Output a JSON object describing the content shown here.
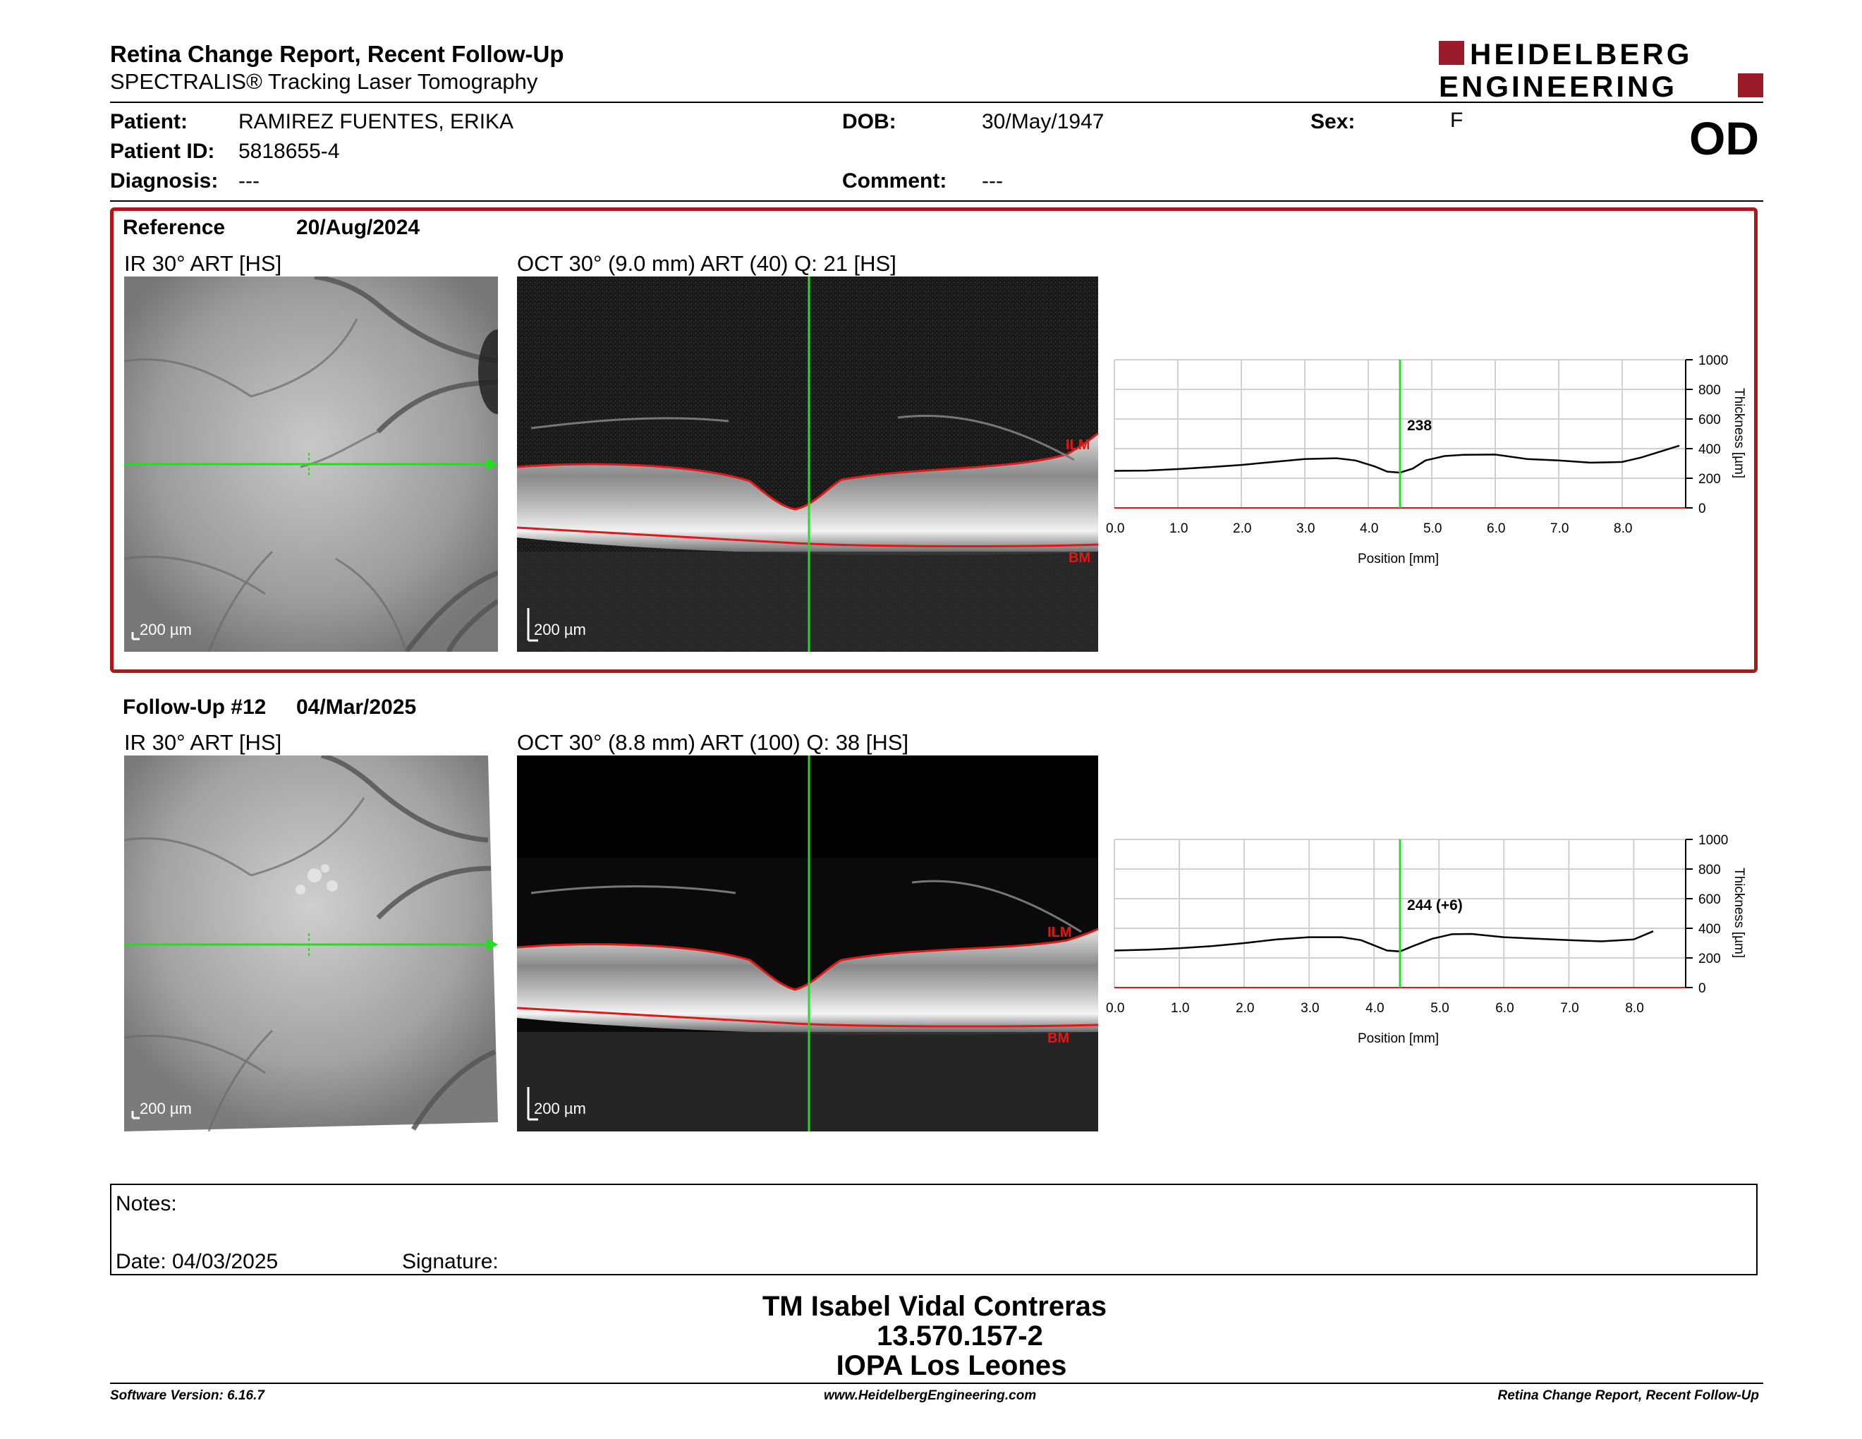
{
  "header": {
    "title": "Retina Change Report, Recent Follow-Up",
    "subtitle": "SPECTRALIS® Tracking Laser Tomography",
    "logo_line1": "HEIDELBERG",
    "logo_line2": "ENGINEERING",
    "brand_color": "#9b1b2a"
  },
  "patient": {
    "patient_label": "Patient:",
    "patient_value": "RAMIREZ FUENTES, ERIKA",
    "id_label": "Patient ID:",
    "id_value": "5818655-4",
    "diagnosis_label": "Diagnosis:",
    "diagnosis_value": "---",
    "dob_label": "DOB:",
    "dob_value": "30/May/1947",
    "comment_label": "Comment:",
    "comment_value": "---",
    "sex_label": "Sex:",
    "sex_value": "F",
    "eye": "OD"
  },
  "reference": {
    "label": "Reference",
    "date": "20/Aug/2024",
    "ir_label": "IR 30° ART [HS]",
    "oct_label": "OCT 30° (9.0 mm) ART (40) Q: 21 [HS]",
    "scale_label": "200 µm",
    "ilm_label": "ILM",
    "bm_label": "BM"
  },
  "followup": {
    "label": "Follow-Up #12",
    "date": "04/Mar/2025",
    "ir_label": "IR 30° ART [HS]",
    "oct_label": "OCT 30° (8.8 mm) ART (100) Q: 38 [HS]",
    "scale_label": "200 µm",
    "ilm_label": "ILM",
    "bm_label": "BM"
  },
  "chart_data": [
    {
      "type": "line",
      "xlabel": "Position [mm]",
      "ylabel": "Thickness [µm]",
      "xlim": [
        0,
        9.0
      ],
      "ylim": [
        0,
        1000
      ],
      "xticks": [
        "0.0",
        "1.0",
        "2.0",
        "3.0",
        "4.0",
        "5.0",
        "6.0",
        "7.0",
        "8.0"
      ],
      "yticks": [
        "0",
        "200",
        "400",
        "600",
        "800",
        "1000"
      ],
      "cursor_x": 4.5,
      "cursor_label": "238",
      "grid": true,
      "series": [
        {
          "x": [
            0,
            0.5,
            1,
            1.5,
            2,
            2.5,
            3,
            3.5,
            3.8,
            4.1,
            4.3,
            4.5,
            4.7,
            4.9,
            5.2,
            5.5,
            6,
            6.5,
            7,
            7.5,
            8,
            8.3,
            8.6,
            8.9
          ],
          "y": [
            250,
            252,
            262,
            275,
            290,
            310,
            330,
            335,
            320,
            280,
            245,
            238,
            265,
            320,
            350,
            358,
            360,
            330,
            320,
            305,
            310,
            340,
            380,
            420
          ]
        }
      ]
    },
    {
      "type": "line",
      "xlabel": "Position [mm]",
      "ylabel": "Thickness [µm]",
      "xlim": [
        0,
        8.8
      ],
      "ylim": [
        0,
        1000
      ],
      "xticks": [
        "0.0",
        "1.0",
        "2.0",
        "3.0",
        "4.0",
        "5.0",
        "6.0",
        "7.0",
        "8.0"
      ],
      "yticks": [
        "0",
        "200",
        "400",
        "600",
        "800",
        "1000"
      ],
      "cursor_x": 4.4,
      "cursor_label": "244 (+6)",
      "grid": true,
      "series": [
        {
          "x": [
            0,
            0.5,
            1,
            1.5,
            2,
            2.5,
            3,
            3.5,
            3.8,
            4.0,
            4.2,
            4.4,
            4.6,
            4.9,
            5.2,
            5.5,
            6,
            6.5,
            7,
            7.5,
            8,
            8.3
          ],
          "y": [
            250,
            255,
            265,
            280,
            300,
            325,
            340,
            340,
            320,
            285,
            250,
            244,
            280,
            330,
            360,
            362,
            340,
            330,
            320,
            312,
            325,
            380
          ]
        }
      ]
    }
  ],
  "notes": {
    "notes_label": "Notes:",
    "date_label": "Date: 04/03/2025",
    "signature_label": "Signature:"
  },
  "signature_block": {
    "line1": "TM Isabel Vidal Contreras",
    "line2": "13.570.157-2",
    "line3": "IOPA Los Leones"
  },
  "footer": {
    "software": "Software Version: 6.16.7",
    "website": "www.HeidelbergEngineering.com",
    "report": "Retina Change Report, Recent Follow-Up"
  }
}
